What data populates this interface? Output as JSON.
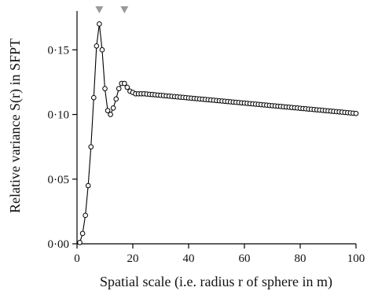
{
  "chart_data": {
    "type": "scatter",
    "xlabel": "Spatial scale (i.e. radius r of sphere in m)",
    "ylabel": "Relative variance S(r) in SFPT",
    "xlim": [
      0,
      100
    ],
    "ylim": [
      0,
      0.18
    ],
    "xticks": [
      0,
      20,
      40,
      60,
      80,
      100
    ],
    "xtick_labels": [
      "0",
      "20",
      "40",
      "60",
      "80",
      "100"
    ],
    "yticks": [
      0,
      0.05,
      0.1,
      0.15
    ],
    "ytick_labels": [
      "0·00",
      "0·05",
      "0·10",
      "0·15"
    ],
    "grid": false,
    "series": [
      {
        "x": [
          1,
          2,
          3,
          4,
          5,
          6,
          7,
          8,
          9,
          10,
          11,
          12,
          13,
          14,
          15,
          16,
          17,
          18,
          19,
          20,
          21,
          22,
          23,
          24,
          25,
          26,
          27,
          28,
          29,
          30,
          31,
          32,
          33,
          34,
          35,
          36,
          37,
          38,
          39,
          40,
          41,
          42,
          43,
          44,
          45,
          46,
          47,
          48,
          49,
          50,
          51,
          52,
          53,
          54,
          55,
          56,
          57,
          58,
          59,
          60,
          61,
          62,
          63,
          64,
          65,
          66,
          67,
          68,
          69,
          70,
          71,
          72,
          73,
          74,
          75,
          76,
          77,
          78,
          79,
          80,
          81,
          82,
          83,
          84,
          85,
          86,
          87,
          88,
          89,
          90,
          91,
          92,
          93,
          94,
          95,
          96,
          97,
          98,
          99,
          100
        ],
        "y": [
          0.001,
          0.008,
          0.022,
          0.045,
          0.075,
          0.113,
          0.153,
          0.17,
          0.15,
          0.12,
          0.103,
          0.1,
          0.105,
          0.112,
          0.12,
          0.124,
          0.124,
          0.121,
          0.118,
          0.117,
          0.116,
          0.116,
          0.116,
          0.116,
          0.1158,
          0.1156,
          0.1154,
          0.1152,
          0.115,
          0.1148,
          0.1146,
          0.1144,
          0.1142,
          0.114,
          0.1138,
          0.1136,
          0.1134,
          0.1132,
          0.113,
          0.1128,
          0.1126,
          0.1124,
          0.1122,
          0.112,
          0.1118,
          0.1116,
          0.1114,
          0.1112,
          0.111,
          0.1108,
          0.1106,
          0.1104,
          0.1102,
          0.11,
          0.1098,
          0.1096,
          0.1094,
          0.1092,
          0.109,
          0.1088,
          0.1086,
          0.1084,
          0.1082,
          0.108,
          0.1078,
          0.1076,
          0.1074,
          0.1072,
          0.107,
          0.1068,
          0.1066,
          0.1064,
          0.1062,
          0.106,
          0.1058,
          0.1056,
          0.1054,
          0.1052,
          0.105,
          0.1048,
          0.1046,
          0.1044,
          0.1042,
          0.104,
          0.1038,
          0.1036,
          0.1034,
          0.1032,
          0.103,
          0.1028,
          0.1026,
          0.1024,
          0.1022,
          0.102,
          0.1018,
          0.1016,
          0.1014,
          0.1012,
          0.101,
          0.1008
        ]
      }
    ],
    "peak_markers_x": [
      8,
      17
    ],
    "colors": {
      "line": "#000000",
      "marker_fill": "#ffffff",
      "peak_marker": "#9a9a9a"
    }
  }
}
